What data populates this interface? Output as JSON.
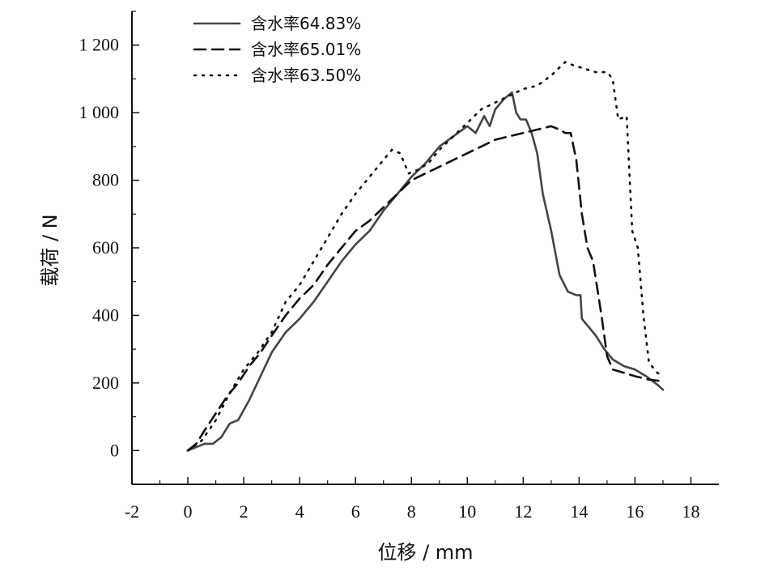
{
  "chart_data": {
    "type": "line",
    "xlabel": "位移 / mm",
    "ylabel": "载荷 / N",
    "xlim": [
      -2,
      19
    ],
    "ylim": [
      -100,
      1300
    ],
    "xticks": [
      -2,
      0,
      2,
      4,
      6,
      8,
      10,
      12,
      14,
      16,
      18
    ],
    "xtick_labels": [
      "-2",
      "0",
      "2",
      "4",
      "6",
      "8",
      "10",
      "12",
      "14",
      "16",
      "18"
    ],
    "yticks": [
      0,
      200,
      400,
      600,
      800,
      1000,
      1200
    ],
    "ytick_labels": [
      "0",
      "200",
      "400",
      "600",
      "800",
      "1 000",
      "1 200"
    ],
    "grid": false,
    "legend_position": "top-left",
    "series": [
      {
        "name": "含水率64.83%",
        "color": "#444444",
        "style": "solid",
        "x": [
          0,
          0.3,
          0.6,
          0.9,
          1.2,
          1.5,
          1.8,
          2.2,
          2.6,
          3,
          3.5,
          4,
          4.5,
          5,
          5.5,
          6,
          6.5,
          7,
          7.5,
          8,
          8.5,
          9,
          9.5,
          10,
          10.3,
          10.6,
          10.8,
          11,
          11.3,
          11.6,
          11.75,
          11.9,
          12.1,
          12.3,
          12.5,
          12.7,
          13,
          13.3,
          13.6,
          13.9,
          14.05,
          14.1,
          14.3,
          14.6,
          14.9,
          15.2,
          15.6,
          16,
          16.4,
          16.8,
          17
        ],
        "y": [
          0,
          10,
          20,
          20,
          40,
          80,
          90,
          150,
          220,
          290,
          350,
          390,
          440,
          500,
          560,
          610,
          650,
          710,
          760,
          810,
          850,
          900,
          930,
          960,
          940,
          990,
          960,
          1010,
          1040,
          1060,
          1000,
          980,
          980,
          940,
          880,
          760,
          650,
          520,
          470,
          460,
          460,
          390,
          370,
          340,
          300,
          270,
          250,
          240,
          220,
          195,
          180
        ]
      },
      {
        "name": "含水率65.01%",
        "color": "#111111",
        "style": "dashed",
        "x": [
          0,
          0.3,
          0.6,
          1,
          1.4,
          1.8,
          2.2,
          2.6,
          3,
          3.5,
          4,
          4.5,
          5,
          5.5,
          6,
          6.5,
          7,
          7.5,
          8,
          8.5,
          9,
          9.5,
          10,
          10.5,
          11,
          11.5,
          12,
          12.5,
          13,
          13.3,
          13.5,
          13.7,
          13.9,
          14.1,
          14.3,
          14.5,
          14.8,
          15,
          15.2,
          15.6,
          16,
          16.5,
          17
        ],
        "y": [
          0,
          20,
          60,
          110,
          160,
          200,
          250,
          290,
          340,
          400,
          450,
          490,
          550,
          600,
          650,
          680,
          720,
          760,
          800,
          820,
          840,
          860,
          880,
          900,
          920,
          930,
          940,
          950,
          960,
          950,
          940,
          940,
          860,
          700,
          600,
          560,
          400,
          280,
          240,
          230,
          220,
          210,
          205
        ]
      },
      {
        "name": "含水率63.50%",
        "color": "#111111",
        "style": "dotted",
        "x": [
          0,
          0.5,
          1,
          1.5,
          2,
          2.5,
          3,
          3.5,
          4,
          4.5,
          5,
          5.5,
          6,
          6.5,
          7,
          7.3,
          7.6,
          7.9,
          8.2,
          8.6,
          9,
          9.5,
          10,
          10.5,
          11,
          11.5,
          12,
          12.5,
          13,
          13.5,
          13.8,
          14.2,
          14.6,
          15,
          15.2,
          15.4,
          15.7,
          15.9,
          16.1,
          16.3,
          16.5,
          16.8,
          17
        ],
        "y": [
          0,
          30,
          90,
          170,
          240,
          290,
          350,
          440,
          490,
          560,
          630,
          700,
          760,
          810,
          860,
          890,
          880,
          820,
          830,
          850,
          890,
          930,
          970,
          1010,
          1030,
          1050,
          1070,
          1080,
          1110,
          1150,
          1140,
          1130,
          1120,
          1120,
          1100,
          980,
          990,
          650,
          600,
          400,
          260,
          230,
          220
        ]
      }
    ]
  }
}
